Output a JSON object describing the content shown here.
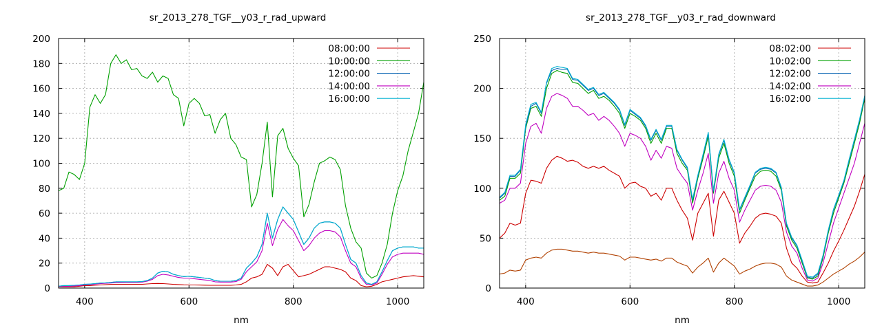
{
  "chart_data": [
    {
      "type": "line",
      "title": "sr_2013_278_TGF__y03_r_rad_upward",
      "xlabel": "nm",
      "ylabel": "",
      "xlim": [
        350,
        1050
      ],
      "ylim": [
        0,
        200
      ],
      "xticks": [
        400,
        600,
        800,
        1000
      ],
      "yticks": [
        0,
        20,
        40,
        60,
        80,
        100,
        120,
        140,
        160,
        180,
        200
      ],
      "grid": true,
      "legend_position": "top-right",
      "x": [
        350,
        360,
        370,
        380,
        390,
        400,
        410,
        420,
        430,
        440,
        450,
        460,
        470,
        480,
        490,
        500,
        510,
        520,
        530,
        540,
        550,
        560,
        570,
        580,
        590,
        600,
        610,
        620,
        630,
        640,
        650,
        660,
        670,
        680,
        690,
        700,
        710,
        720,
        730,
        740,
        750,
        760,
        770,
        780,
        790,
        800,
        810,
        820,
        830,
        840,
        850,
        860,
        870,
        880,
        890,
        900,
        910,
        920,
        930,
        940,
        950,
        960,
        970,
        980,
        990,
        1000,
        1010,
        1020,
        1030,
        1040,
        1050
      ],
      "series": [
        {
          "name": "08:00:00",
          "color": "#cc0000",
          "values": [
            1,
            1,
            1,
            1,
            1.5,
            2,
            2,
            2.3,
            2.5,
            2.7,
            3,
            3,
            3,
            3,
            3,
            3,
            3,
            3.3,
            3.6,
            3.7,
            3.6,
            3.3,
            3,
            2.8,
            2.6,
            2.5,
            2.5,
            2.4,
            2.3,
            2.2,
            2.2,
            2.2,
            2.2,
            2.2,
            2.5,
            3,
            5,
            8,
            9,
            11,
            19,
            16,
            10,
            17,
            19,
            14,
            9,
            10,
            11,
            13,
            15,
            17,
            17,
            16,
            15,
            13,
            8,
            6,
            2,
            1,
            1.5,
            3,
            5,
            6,
            7,
            8,
            9,
            9.5,
            10,
            9.5,
            9
          ]
        },
        {
          "name": "10:00:00",
          "color": "#00a000",
          "values": [
            78,
            80,
            93,
            91,
            87,
            100,
            145,
            155,
            148,
            155,
            180,
            187,
            180,
            183,
            175,
            176,
            170,
            168,
            173,
            165,
            170,
            168,
            155,
            152,
            130,
            148,
            152,
            148,
            138,
            139,
            124,
            135,
            140,
            120,
            115,
            105,
            103,
            65,
            75,
            100,
            133,
            73,
            122,
            128,
            112,
            104,
            98,
            57,
            67,
            85,
            100,
            102,
            105,
            103,
            95,
            66,
            48,
            37,
            32,
            12,
            8,
            10,
            20,
            35,
            60,
            78,
            90,
            110,
            125,
            140,
            165
          ]
        },
        {
          "name": "12:00:00",
          "color": "#0060b0",
          "values": [
            1.5,
            2,
            2,
            2.2,
            2.5,
            3,
            3.2,
            3.6,
            4,
            4.2,
            4.5,
            5,
            5,
            5,
            5,
            5,
            5.2,
            6,
            8,
            12,
            13.5,
            13,
            11,
            10,
            9.2,
            9.5,
            9,
            8.5,
            8,
            7.5,
            6,
            5.5,
            5.5,
            5.5,
            6,
            8,
            16,
            20,
            25,
            35,
            60,
            40,
            55,
            65,
            60,
            55,
            45,
            35,
            40,
            48,
            52,
            53,
            53,
            52,
            48,
            35,
            23,
            20,
            10,
            4,
            3,
            5,
            13,
            22,
            30,
            32,
            33,
            33,
            33,
            32,
            32
          ]
        },
        {
          "name": "14:00:00",
          "color": "#c000c0",
          "values": [
            1.2,
            1.5,
            1.5,
            1.7,
            2,
            2.5,
            2.8,
            3.2,
            3.5,
            3.8,
            4,
            4.3,
            4.4,
            4.5,
            4.5,
            4.5,
            4.7,
            5.5,
            7,
            10,
            11,
            10.5,
            9.5,
            8.5,
            8,
            8,
            7.5,
            7,
            6.5,
            6,
            5,
            4.8,
            4.8,
            4.8,
            5.2,
            7,
            13,
            17,
            21,
            30,
            52,
            34,
            47,
            55,
            50,
            46,
            38,
            30,
            34,
            40,
            44,
            46,
            46,
            45,
            41,
            30,
            20,
            17,
            8,
            3,
            2.5,
            4,
            11,
            19,
            25,
            27,
            28,
            28,
            28,
            28,
            27
          ]
        },
        {
          "name": "16:00:00",
          "color": "#00b0d0",
          "values": [
            1.5,
            2,
            2,
            2.2,
            2.5,
            3,
            3.2,
            3.6,
            4,
            4.2,
            4.5,
            5,
            5,
            5,
            5,
            5,
            5.2,
            6,
            8,
            12,
            13.5,
            13,
            11,
            10,
            9.2,
            9.5,
            9,
            8.5,
            8,
            7.5,
            6,
            5.5,
            5.5,
            5.5,
            6,
            8,
            16,
            20,
            25,
            35,
            60,
            40,
            55,
            65,
            60,
            55,
            45,
            35,
            40,
            48,
            52,
            53,
            53,
            52,
            48,
            35,
            23,
            20,
            10,
            4,
            3,
            5,
            13,
            22,
            30,
            32,
            33,
            33,
            33,
            32,
            32
          ]
        }
      ]
    },
    {
      "type": "line",
      "title": "sr_2013_278_TGF__y03_r_rad_downward",
      "xlabel": "nm",
      "ylabel": "",
      "xlim": [
        350,
        1050
      ],
      "ylim": [
        0,
        250
      ],
      "xticks": [
        400,
        600,
        800,
        1000
      ],
      "yticks": [
        0,
        50,
        100,
        150,
        200,
        250
      ],
      "grid": true,
      "legend_position": "top-right",
      "x": [
        350,
        360,
        370,
        380,
        390,
        400,
        410,
        420,
        430,
        440,
        450,
        460,
        470,
        480,
        490,
        500,
        510,
        520,
        530,
        540,
        550,
        560,
        570,
        580,
        590,
        600,
        610,
        620,
        630,
        640,
        650,
        660,
        670,
        680,
        690,
        700,
        710,
        720,
        730,
        740,
        750,
        760,
        770,
        780,
        790,
        800,
        810,
        820,
        830,
        840,
        850,
        860,
        870,
        880,
        890,
        900,
        910,
        920,
        930,
        940,
        950,
        960,
        970,
        980,
        990,
        1000,
        1010,
        1020,
        1030,
        1040,
        1050
      ],
      "series": [
        {
          "name": "08:02:00",
          "color": "#cc0000",
          "values": [
            50,
            55,
            65,
            63,
            65,
            95,
            108,
            107,
            105,
            120,
            128,
            132,
            130,
            127,
            128,
            126,
            122,
            120,
            122,
            120,
            122,
            118,
            115,
            112,
            100,
            105,
            106,
            102,
            100,
            92,
            95,
            88,
            100,
            100,
            88,
            78,
            70,
            48,
            75,
            85,
            95,
            52,
            88,
            97,
            86,
            75,
            45,
            55,
            62,
            70,
            74,
            75,
            74,
            72,
            65,
            40,
            25,
            20,
            12,
            6,
            5,
            6,
            15,
            25,
            37,
            47,
            58,
            70,
            82,
            97,
            114
          ]
        },
        {
          "name": "10:02:00",
          "color": "#00a000",
          "values": [
            88,
            92,
            110,
            110,
            115,
            160,
            180,
            182,
            172,
            200,
            215,
            218,
            216,
            215,
            206,
            205,
            200,
            195,
            198,
            190,
            192,
            188,
            182,
            175,
            160,
            175,
            172,
            168,
            160,
            145,
            155,
            145,
            160,
            160,
            135,
            125,
            118,
            85,
            110,
            130,
            152,
            95,
            130,
            145,
            125,
            112,
            75,
            88,
            100,
            112,
            117,
            118,
            117,
            112,
            98,
            62,
            48,
            40,
            25,
            10,
            9,
            12,
            30,
            55,
            75,
            90,
            105,
            125,
            145,
            165,
            190
          ]
        },
        {
          "name": "12:02:00",
          "color": "#0060b0",
          "values": [
            90,
            95,
            112,
            112,
            118,
            162,
            182,
            185,
            175,
            205,
            218,
            220,
            219,
            219,
            209,
            208,
            203,
            198,
            200,
            193,
            195,
            190,
            185,
            178,
            163,
            178,
            174,
            170,
            162,
            148,
            158,
            148,
            162,
            162,
            138,
            128,
            120,
            88,
            112,
            133,
            155,
            97,
            133,
            148,
            128,
            115,
            78,
            90,
            102,
            115,
            119,
            120,
            119,
            115,
            100,
            64,
            50,
            42,
            27,
            11,
            10,
            14,
            32,
            57,
            78,
            92,
            107,
            128,
            148,
            168,
            192
          ]
        },
        {
          "name": "14:02:00",
          "color": "#c000c0",
          "values": [
            85,
            88,
            100,
            100,
            105,
            145,
            162,
            165,
            155,
            180,
            192,
            195,
            193,
            190,
            182,
            182,
            178,
            173,
            175,
            168,
            172,
            168,
            162,
            155,
            142,
            155,
            153,
            150,
            142,
            128,
            138,
            130,
            142,
            140,
            120,
            112,
            105,
            78,
            98,
            115,
            135,
            85,
            115,
            127,
            110,
            98,
            66,
            78,
            88,
            98,
            102,
            103,
            102,
            98,
            86,
            56,
            42,
            35,
            20,
            8,
            7,
            10,
            25,
            45,
            65,
            80,
            95,
            110,
            125,
            145,
            165
          ]
        },
        {
          "name": "16:02:00",
          "color": "#00b0d0",
          "values": [
            91,
            96,
            113,
            113,
            119,
            164,
            184,
            186,
            176,
            206,
            220,
            222,
            221,
            220,
            210,
            209,
            204,
            199,
            201,
            194,
            196,
            191,
            186,
            179,
            164,
            179,
            175,
            171,
            163,
            149,
            159,
            149,
            163,
            163,
            139,
            129,
            121,
            89,
            113,
            134,
            156,
            98,
            134,
            149,
            129,
            116,
            79,
            91,
            103,
            116,
            120,
            121,
            120,
            116,
            101,
            65,
            51,
            43,
            28,
            12,
            11,
            15,
            33,
            58,
            79,
            93,
            108,
            129,
            149,
            169,
            193
          ]
        },
        {
          "name": "",
          "color": "#b04000",
          "values": [
            14,
            15,
            18,
            17,
            18,
            28,
            30,
            31,
            30,
            35,
            38,
            39,
            39,
            38,
            37,
            37,
            36,
            35,
            36,
            35,
            35,
            34,
            33,
            32,
            28,
            31,
            31,
            30,
            29,
            28,
            29,
            27,
            30,
            30,
            26,
            24,
            22,
            15,
            21,
            25,
            30,
            16,
            25,
            30,
            26,
            22,
            14,
            17,
            19,
            22,
            24,
            25,
            25,
            24,
            21,
            12,
            8,
            6,
            4,
            2,
            2,
            3,
            6,
            10,
            14,
            17,
            20,
            24,
            27,
            31,
            36
          ]
        }
      ]
    }
  ]
}
